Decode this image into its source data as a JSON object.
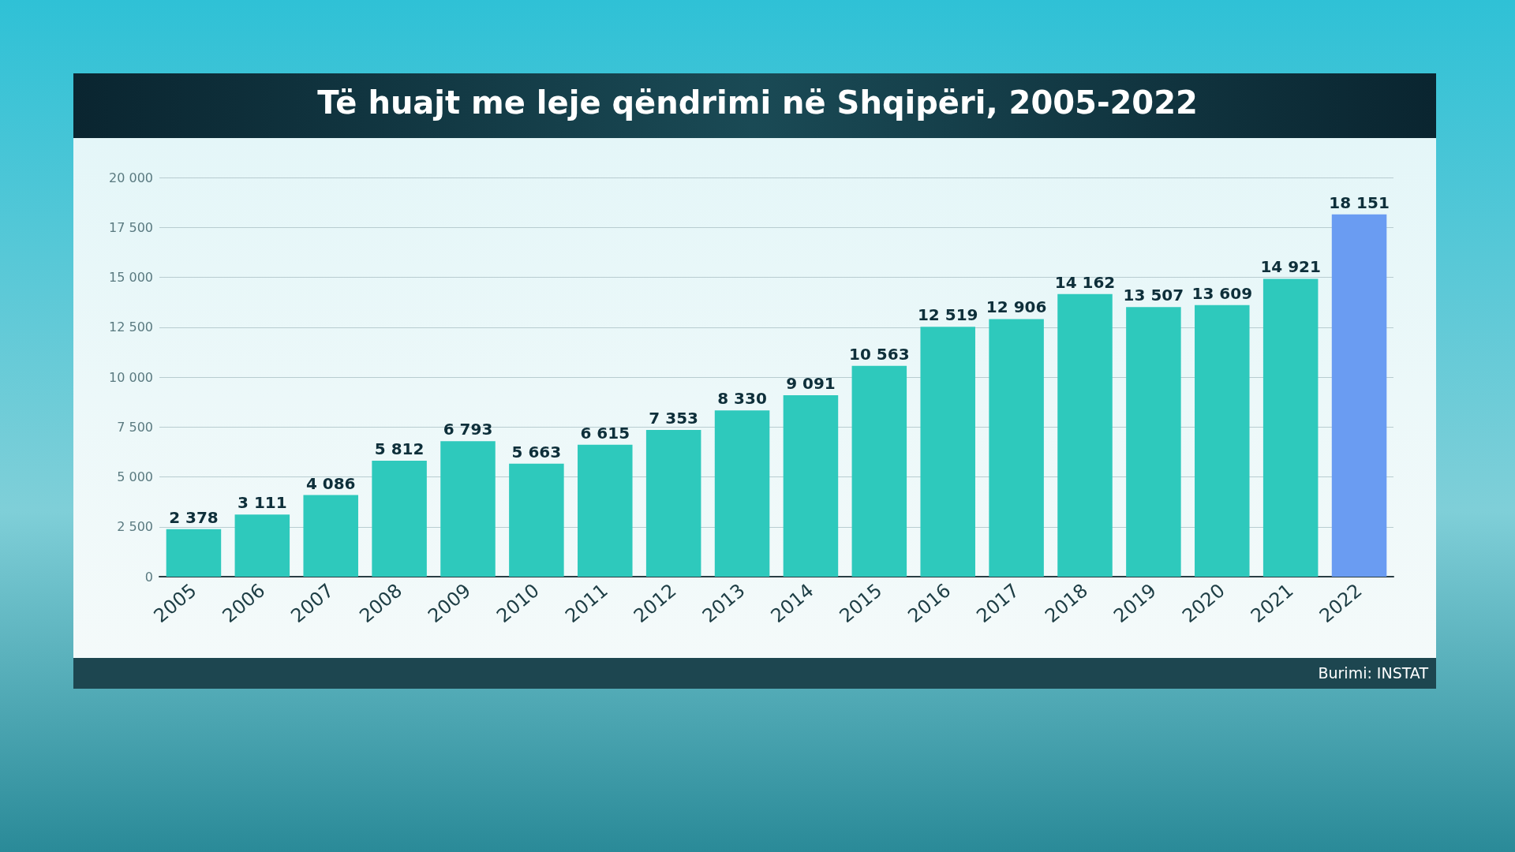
{
  "chart_data": {
    "type": "bar",
    "title": "Të huajt me leje qëndrimi në Shqipëri, 2005-2022",
    "categories": [
      "2005",
      "2006",
      "2007",
      "2008",
      "2009",
      "2010",
      "2011",
      "2012",
      "2013",
      "2014",
      "2015",
      "2016",
      "2017",
      "2018",
      "2019",
      "2020",
      "2021",
      "2022"
    ],
    "values": [
      2378,
      3111,
      4086,
      5812,
      6793,
      5663,
      6615,
      7353,
      8330,
      9091,
      10563,
      12519,
      12906,
      14162,
      13507,
      13609,
      14921,
      18151
    ],
    "value_labels": [
      "2 378",
      "3 111",
      "4 086",
      "5 812",
      "6 793",
      "5 663",
      "6 615",
      "7 353",
      "8 330",
      "9 091",
      "10 563",
      "12 519",
      "12 906",
      "14 162",
      "13 507",
      "13 609",
      "14 921",
      "18 151"
    ],
    "colors": [
      "#2ec9bc",
      "#2ec9bc",
      "#2ec9bc",
      "#2ec9bc",
      "#2ec9bc",
      "#2ec9bc",
      "#2ec9bc",
      "#2ec9bc",
      "#2ec9bc",
      "#2ec9bc",
      "#2ec9bc",
      "#2ec9bc",
      "#2ec9bc",
      "#2ec9bc",
      "#2ec9bc",
      "#2ec9bc",
      "#2ec9bc",
      "#6a9cf2"
    ],
    "ylim": [
      0,
      20000
    ],
    "yticks": [
      {
        "value": 0,
        "label": "0"
      },
      {
        "value": 2500,
        "label": "2 500"
      },
      {
        "value": 5000,
        "label": "5 000"
      },
      {
        "value": 7500,
        "label": "7 500"
      },
      {
        "value": 10000,
        "label": "10 000"
      },
      {
        "value": 12500,
        "label": "12 500"
      },
      {
        "value": 15000,
        "label": "15 000"
      },
      {
        "value": 17500,
        "label": "17 500"
      },
      {
        "value": 20000,
        "label": "20 000"
      }
    ],
    "grid": "y",
    "annotations": [
      "Burimi: INSTAT"
    ]
  }
}
